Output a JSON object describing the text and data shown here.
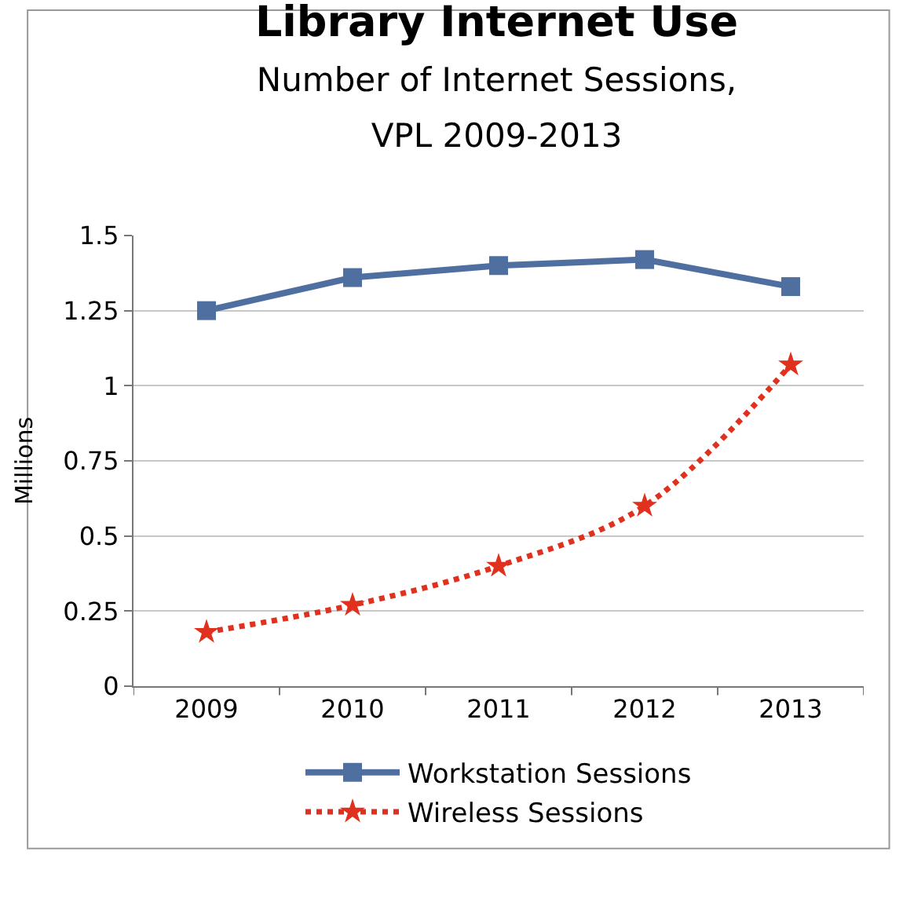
{
  "chart_data": {
    "type": "line",
    "title": "Library Internet Use",
    "subtitle": "Number of Internet Sessions,\nVPL 2009-2013",
    "ylabel": "Millions",
    "categories": [
      "2009",
      "2010",
      "2011",
      "2012",
      "2013"
    ],
    "series": [
      {
        "name": "Workstation Sessions",
        "color": "#4f6fa0",
        "values": [
          1.25,
          1.36,
          1.4,
          1.42,
          1.33
        ],
        "marker": "square",
        "line_style": "solid"
      },
      {
        "name": "Wireless Sessions",
        "color": "#e0301e",
        "values": [
          0.18,
          0.27,
          0.4,
          0.6,
          1.07
        ],
        "marker": "star",
        "line_style": "dotted"
      }
    ],
    "ylim": [
      0,
      1.5
    ],
    "yticks": [
      0,
      0.25,
      0.5,
      0.75,
      1,
      1.25,
      1.5
    ],
    "grid": "y",
    "legend": "bottom"
  }
}
